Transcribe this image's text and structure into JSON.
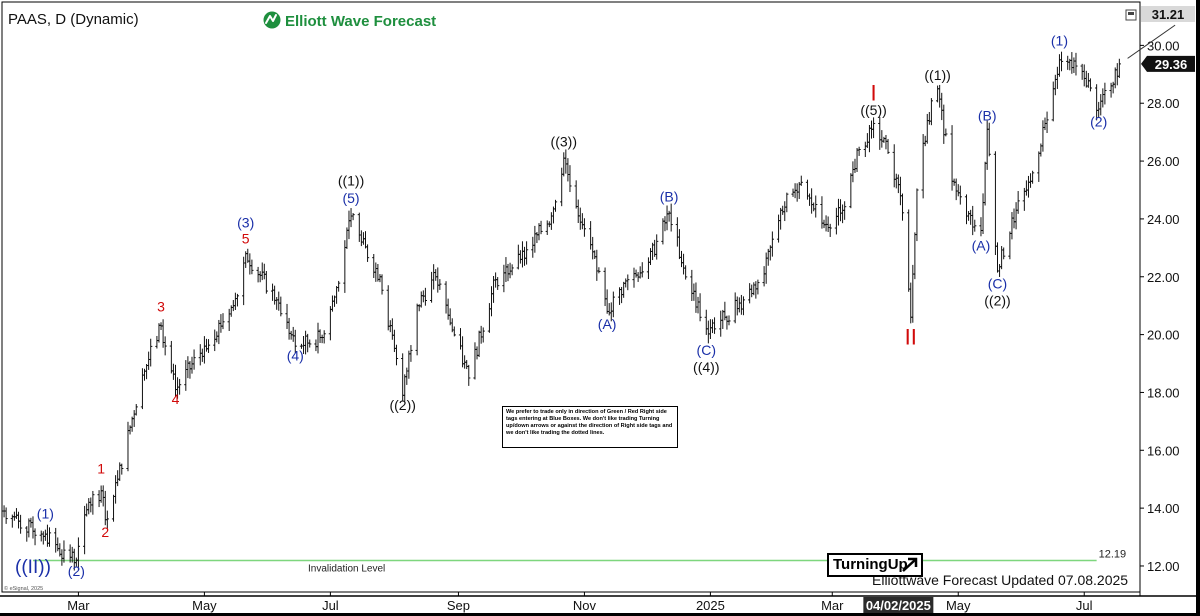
{
  "header": {
    "symbol_title": "PAAS, D (Dynamic)",
    "brand_name": "Elliott Wave Forecast"
  },
  "colors": {
    "blue": "#1a2fa8",
    "red": "#d10a0a",
    "black": "#111111",
    "green_line": "#7ed67e",
    "price_tag_dark": "#111111"
  },
  "chart_data": {
    "type": "ohlc",
    "ylim": [
      11.1,
      31.5
    ],
    "yticks": [
      "12.00",
      "14.00",
      "16.00",
      "18.00",
      "20.00",
      "22.00",
      "24.00",
      "26.00",
      "28.00",
      "30.00"
    ],
    "ytick_values": [
      12,
      14,
      16,
      18,
      20,
      22,
      24,
      26,
      28,
      30
    ],
    "x_labels": [
      "Mar",
      "May",
      "Jul",
      "Sep",
      "Nov",
      "2025",
      "Mar",
      "May",
      "Jul"
    ],
    "x_label_dates": [
      "2024-03-01",
      "2024-05-01",
      "2024-07-01",
      "2024-09-01",
      "2024-11-01",
      "2025-01-01",
      "2025-03-01",
      "2025-05-01",
      "2025-07-01"
    ],
    "x_range": [
      "2024-01-24",
      "2025-07-28"
    ],
    "highlight_date_label": "04/02/2025",
    "highlight_date": "2025-04-02",
    "last_price": "29.36",
    "last_price_value": 29.36,
    "top_price": "31.21",
    "top_price_value": 31.21,
    "price_path": [
      [
        "2024-01-25",
        13.9
      ],
      [
        "2024-02-08",
        13.2
      ],
      [
        "2024-02-14",
        13.1
      ],
      [
        "2024-02-20",
        12.6
      ],
      [
        "2024-02-29",
        12.2
      ],
      [
        "2024-03-06",
        14.2
      ],
      [
        "2024-03-12",
        14.6
      ],
      [
        "2024-03-14",
        13.6
      ],
      [
        "2024-03-20",
        15.0
      ],
      [
        "2024-04-01",
        18.6
      ],
      [
        "2024-04-10",
        20.3
      ],
      [
        "2024-04-17",
        18.1
      ],
      [
        "2024-05-01",
        19.6
      ],
      [
        "2024-05-15",
        21.0
      ],
      [
        "2024-05-21",
        22.8
      ],
      [
        "2024-06-05",
        21.2
      ],
      [
        "2024-06-14",
        19.6
      ],
      [
        "2024-06-27",
        19.9
      ],
      [
        "2024-07-03",
        21.3
      ],
      [
        "2024-07-11",
        24.1
      ],
      [
        "2024-07-16",
        23.2
      ],
      [
        "2024-07-25",
        22.0
      ],
      [
        "2024-08-05",
        17.9
      ],
      [
        "2024-08-12",
        21.0
      ],
      [
        "2024-08-21",
        22.0
      ],
      [
        "2024-08-28",
        20.4
      ],
      [
        "2024-09-06",
        18.5
      ],
      [
        "2024-09-19",
        21.9
      ],
      [
        "2024-10-01",
        22.6
      ],
      [
        "2024-10-16",
        24.1
      ],
      [
        "2024-10-22",
        26.1
      ],
      [
        "2024-10-31",
        23.8
      ],
      [
        "2024-11-07",
        22.2
      ],
      [
        "2024-11-12",
        20.8
      ],
      [
        "2024-11-22",
        21.9
      ],
      [
        "2024-12-02",
        22.5
      ],
      [
        "2024-12-12",
        24.2
      ],
      [
        "2024-12-19",
        22.3
      ],
      [
        "2024-12-30",
        20.2
      ],
      [
        "2025-01-08",
        20.6
      ],
      [
        "2025-01-17",
        21.2
      ],
      [
        "2025-01-27",
        22.1
      ],
      [
        "2025-02-04",
        24.3
      ],
      [
        "2025-02-13",
        25.2
      ],
      [
        "2025-02-25",
        23.8
      ],
      [
        "2025-03-05",
        24.2
      ],
      [
        "2025-03-14",
        26.4
      ],
      [
        "2025-03-21",
        27.3
      ],
      [
        "2025-03-28",
        26.3
      ],
      [
        "2025-04-03",
        24.8
      ],
      [
        "2025-04-08",
        20.6
      ],
      [
        "2025-04-11",
        25.0
      ],
      [
        "2025-04-16",
        27.4
      ],
      [
        "2025-04-21",
        28.5
      ],
      [
        "2025-04-28",
        25.3
      ],
      [
        "2025-05-05",
        24.1
      ],
      [
        "2025-05-12",
        23.6
      ],
      [
        "2025-05-15",
        27.1
      ],
      [
        "2025-05-20",
        22.2
      ],
      [
        "2025-05-29",
        24.3
      ],
      [
        "2025-06-05",
        25.3
      ],
      [
        "2025-06-12",
        27.3
      ],
      [
        "2025-06-16",
        28.5
      ],
      [
        "2025-06-19",
        29.5
      ],
      [
        "2025-06-30",
        29.1
      ],
      [
        "2025-07-08",
        27.8
      ],
      [
        "2025-07-14",
        28.6
      ],
      [
        "2025-07-18",
        29.36
      ]
    ],
    "wave_labels": [
      {
        "text": "((II))",
        "date": "2024-02-08",
        "price": 11.75,
        "color": "blue",
        "big": true
      },
      {
        "text": "(1)",
        "date": "2024-02-14",
        "price": 13.65,
        "color": "blue"
      },
      {
        "text": "(2)",
        "date": "2024-02-29",
        "price": 11.65,
        "color": "blue"
      },
      {
        "text": "1",
        "date": "2024-03-12",
        "price": 15.2,
        "color": "red"
      },
      {
        "text": "2",
        "date": "2024-03-14",
        "price": 13.0,
        "color": "red"
      },
      {
        "text": "3",
        "date": "2024-04-10",
        "price": 20.8,
        "color": "red"
      },
      {
        "text": "4",
        "date": "2024-04-17",
        "price": 17.6,
        "color": "red"
      },
      {
        "text": "5",
        "date": "2024-05-21",
        "price": 23.15,
        "color": "red"
      },
      {
        "text": "(3)",
        "date": "2024-05-21",
        "price": 23.7,
        "color": "blue"
      },
      {
        "text": "(4)",
        "date": "2024-06-14",
        "price": 19.1,
        "color": "blue"
      },
      {
        "text": "(5)",
        "date": "2024-07-11",
        "price": 24.55,
        "color": "blue"
      },
      {
        "text": "((1))",
        "date": "2024-07-11",
        "price": 25.15,
        "color": "black"
      },
      {
        "text": "((2))",
        "date": "2024-08-05",
        "price": 17.4,
        "color": "black"
      },
      {
        "text": "((3))",
        "date": "2024-10-22",
        "price": 26.5,
        "color": "black"
      },
      {
        "text": "(A)",
        "date": "2024-11-12",
        "price": 20.2,
        "color": "blue"
      },
      {
        "text": "(B)",
        "date": "2024-12-12",
        "price": 24.6,
        "color": "blue"
      },
      {
        "text": "(C)",
        "date": "2024-12-30",
        "price": 19.3,
        "color": "blue"
      },
      {
        "text": "((4))",
        "date": "2024-12-30",
        "price": 18.7,
        "color": "black"
      },
      {
        "text": "I",
        "date": "2025-03-21",
        "price": 28.1,
        "color": "red",
        "big": true
      },
      {
        "text": "((5))",
        "date": "2025-03-21",
        "price": 27.6,
        "color": "black"
      },
      {
        "text": "II",
        "date": "2025-04-08",
        "price": 19.65,
        "color": "red",
        "big": true
      },
      {
        "text": "((1))",
        "date": "2025-04-21",
        "price": 28.8,
        "color": "black"
      },
      {
        "text": "(B)",
        "date": "2025-05-15",
        "price": 27.4,
        "color": "blue"
      },
      {
        "text": "(A)",
        "date": "2025-05-12",
        "price": 22.9,
        "color": "blue"
      },
      {
        "text": "(C)",
        "date": "2025-05-20",
        "price": 21.6,
        "color": "blue"
      },
      {
        "text": "((2))",
        "date": "2025-05-20",
        "price": 21.0,
        "color": "black"
      },
      {
        "text": "(1)",
        "date": "2025-06-19",
        "price": 30.0,
        "color": "blue"
      },
      {
        "text": "(2)",
        "date": "2025-07-08",
        "price": 27.2,
        "color": "blue"
      }
    ],
    "invalidation": {
      "value": 12.19,
      "value_label": "12.19",
      "label": "Invalidation Level",
      "start": "2024-02-08",
      "end": "2025-07-07"
    },
    "projection_arrow": {
      "from": [
        "2025-07-22",
        29.55
      ],
      "to": [
        "2025-08-14",
        30.7
      ]
    }
  },
  "notice": {
    "text": "We prefer to trade only in direction of Green / Red Right side tags entering at Blue Boxes. We don't like trading Turning up/down arrows or against the direction of Right side tags and we don't like trading the dotted lines."
  },
  "badge": {
    "label": "TurningUp"
  },
  "footer": {
    "updated_text": "Elliottwave Forecast Updated 07.08.2025",
    "copyright": "© eSignal, 2025"
  }
}
